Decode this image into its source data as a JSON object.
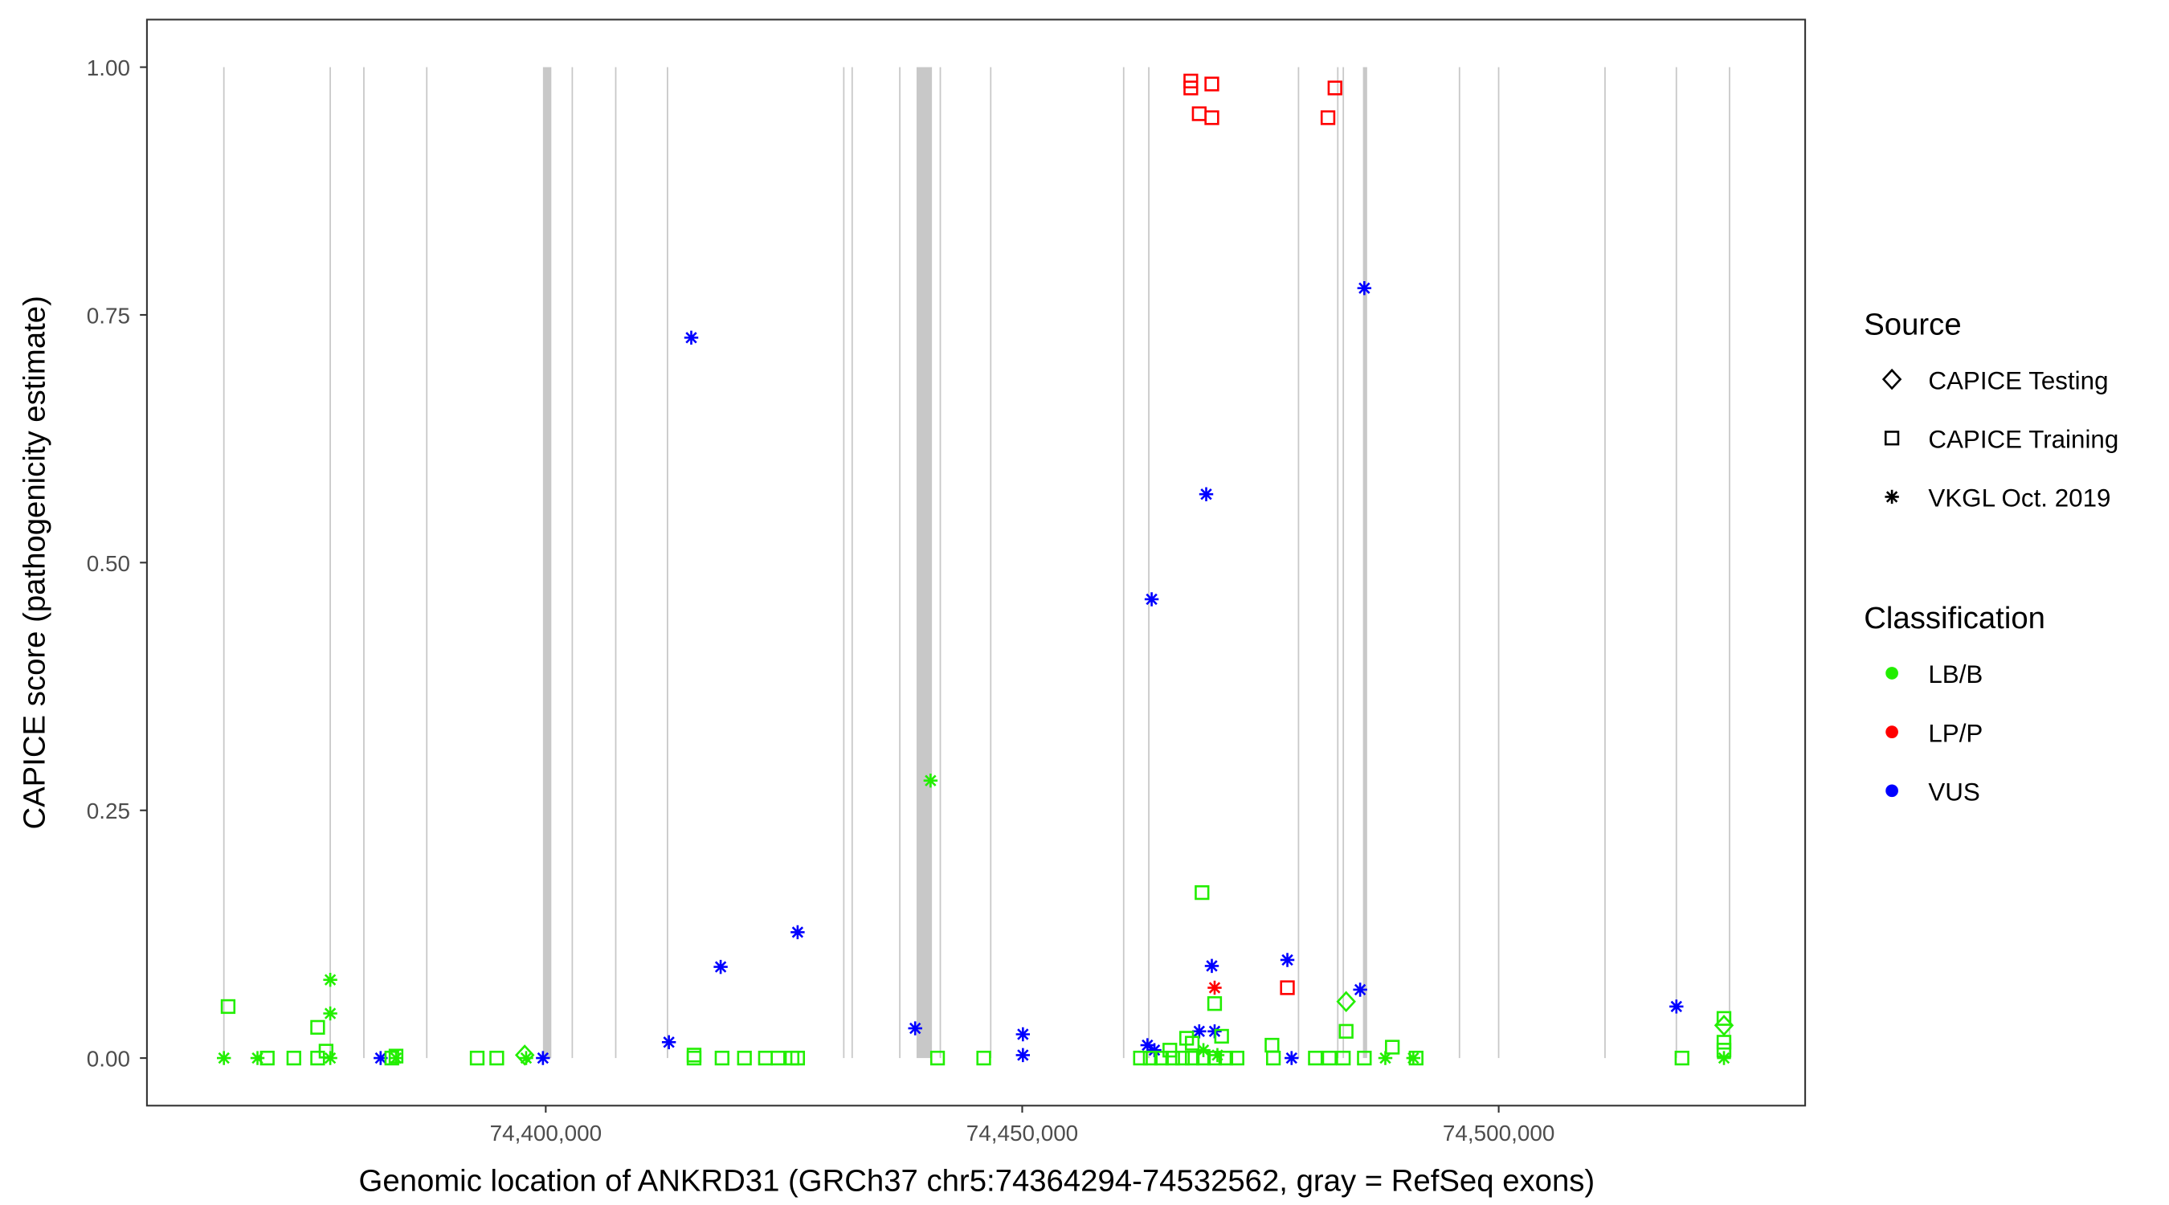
{
  "chart_data": {
    "type": "scatter",
    "xlabel": "Genomic location of ANKRD31 (GRCh37 chr5:74364294-74532562, gray = RefSeq exons)",
    "ylabel": "CAPICE score (pathogenicity estimate)",
    "xlim": [
      74358150,
      74532160
    ],
    "ylim": [
      -0.048,
      1.048
    ],
    "x_ticks": [
      74400000,
      74450000,
      74500000
    ],
    "x_tick_labels": [
      "74,400,000",
      "74,450,000",
      "74,500,000"
    ],
    "y_ticks": [
      0,
      0.25,
      0.5,
      0.75,
      1.0
    ],
    "y_tick_labels": [
      "0.00",
      "0.25",
      "0.50",
      "0.75",
      "1.00"
    ],
    "grid": false,
    "legend_placement": "right",
    "legend": {
      "source_title": "Source",
      "source_items": [
        {
          "label": "CAPICE Testing",
          "shape": "diamond"
        },
        {
          "label": "CAPICE Training",
          "shape": "square"
        },
        {
          "label": "VKGL Oct. 2019",
          "shape": "asterisk"
        }
      ],
      "class_title": "Classification",
      "class_items": [
        {
          "label": "LB/B",
          "color": "#22ee00"
        },
        {
          "label": "LP/P",
          "color": "#ff0000"
        },
        {
          "label": "VUS",
          "color": "#0000ff"
        }
      ]
    },
    "exons": [
      [
        74366150,
        74366300
      ],
      [
        74377310,
        74377460
      ],
      [
        74380840,
        74380990
      ],
      [
        74387440,
        74387590
      ],
      [
        74399706,
        74400587
      ],
      [
        74402710,
        74402860
      ],
      [
        74407270,
        74407420
      ],
      [
        74412700,
        74412850
      ],
      [
        74431200,
        74431350
      ],
      [
        74432080,
        74432230
      ],
      [
        74437080,
        74437230
      ],
      [
        74438913,
        74440528
      ],
      [
        74441330,
        74441480
      ],
      [
        74446620,
        74446770
      ],
      [
        74460570,
        74460720
      ],
      [
        74463210,
        74463360
      ],
      [
        74478920,
        74479070
      ],
      [
        74483040,
        74483190
      ],
      [
        74483620,
        74483770
      ],
      [
        74485755,
        74486196
      ],
      [
        74495810,
        74495960
      ],
      [
        74499920,
        74500070
      ],
      [
        74511080,
        74511230
      ],
      [
        74518570,
        74518720
      ],
      [
        74524150,
        74524300
      ]
    ],
    "points": [
      [
        74467693,
        0.986,
        "CAPICE Training",
        "LP/P"
      ],
      [
        74467693,
        0.979,
        "CAPICE Training",
        "LP/P"
      ],
      [
        74469896,
        0.983,
        "CAPICE Training",
        "LP/P"
      ],
      [
        74468574,
        0.953,
        "CAPICE Training",
        "LP/P"
      ],
      [
        74469896,
        0.949,
        "CAPICE Training",
        "LP/P"
      ],
      [
        74482818,
        0.979,
        "CAPICE Training",
        "LP/P"
      ],
      [
        74482084,
        0.949,
        "CAPICE Training",
        "LP/P"
      ],
      [
        74477825,
        0.071,
        "CAPICE Training",
        "LP/P"
      ],
      [
        74470190,
        0.071,
        "VKGL Oct. 2019",
        "LP/P"
      ],
      [
        74415271,
        0.727,
        "VKGL Oct. 2019",
        "VUS"
      ],
      [
        74485901,
        0.777,
        "VKGL Oct. 2019",
        "VUS"
      ],
      [
        74469308,
        0.569,
        "VKGL Oct. 2019",
        "VUS"
      ],
      [
        74463582,
        0.463,
        "VKGL Oct. 2019",
        "VUS"
      ],
      [
        74426431,
        0.127,
        "VKGL Oct. 2019",
        "VUS"
      ],
      [
        74418355,
        0.092,
        "VKGL Oct. 2019",
        "VUS"
      ],
      [
        74469896,
        0.093,
        "VKGL Oct. 2019",
        "VUS"
      ],
      [
        74477825,
        0.099,
        "VKGL Oct. 2019",
        "VUS"
      ],
      [
        74485461,
        0.069,
        "VKGL Oct. 2019",
        "VUS"
      ],
      [
        74518647,
        0.052,
        "VKGL Oct. 2019",
        "VUS"
      ],
      [
        74412922,
        0.016,
        "VKGL Oct. 2019",
        "VUS"
      ],
      [
        74438766,
        0.03,
        "VKGL Oct. 2019",
        "VUS"
      ],
      [
        74450072,
        0.024,
        "VKGL Oct. 2019",
        "VUS"
      ],
      [
        74450072,
        0.003,
        "VKGL Oct. 2019",
        "VUS"
      ],
      [
        74463141,
        0.013,
        "VKGL Oct. 2019",
        "VUS"
      ],
      [
        74463875,
        0.008,
        "VKGL Oct. 2019",
        "VUS"
      ],
      [
        74468574,
        0.027,
        "VKGL Oct. 2019",
        "VUS"
      ],
      [
        74470190,
        0.027,
        "VKGL Oct. 2019",
        "VUS"
      ],
      [
        74382673,
        0.0,
        "VKGL Oct. 2019",
        "VUS"
      ],
      [
        74399706,
        0.0,
        "VKGL Oct. 2019",
        "VUS"
      ],
      [
        74478266,
        0.0,
        "VKGL Oct. 2019",
        "VUS"
      ],
      [
        74440381,
        0.28,
        "VKGL Oct. 2019",
        "LB/B"
      ],
      [
        74377387,
        0.079,
        "VKGL Oct. 2019",
        "LB/B"
      ],
      [
        74377387,
        0.045,
        "VKGL Oct. 2019",
        "LB/B"
      ],
      [
        74366227,
        0.0,
        "VKGL Oct. 2019",
        "LB/B"
      ],
      [
        74369751,
        0.0,
        "VKGL Oct. 2019",
        "LB/B"
      ],
      [
        74377387,
        0.0,
        "VKGL Oct. 2019",
        "LB/B"
      ],
      [
        74384288,
        0.0,
        "VKGL Oct. 2019",
        "LB/B"
      ],
      [
        74397944,
        0.0,
        "VKGL Oct. 2019",
        "LB/B"
      ],
      [
        74469015,
        0.008,
        "VKGL Oct. 2019",
        "LB/B"
      ],
      [
        74470483,
        0.003,
        "VKGL Oct. 2019",
        "LB/B"
      ],
      [
        74488104,
        0.0,
        "VKGL Oct. 2019",
        "LB/B"
      ],
      [
        74491041,
        0.0,
        "VKGL Oct. 2019",
        "LB/B"
      ],
      [
        74523639,
        0.0,
        "VKGL Oct. 2019",
        "LB/B"
      ],
      [
        74366667,
        0.052,
        "CAPICE Training",
        "LB/B"
      ],
      [
        74376065,
        0.031,
        "CAPICE Training",
        "LB/B"
      ],
      [
        74376946,
        0.007,
        "CAPICE Training",
        "LB/B"
      ],
      [
        74370779,
        0.0,
        "CAPICE Training",
        "LB/B"
      ],
      [
        74373569,
        0.0,
        "CAPICE Training",
        "LB/B"
      ],
      [
        74376065,
        0.0,
        "CAPICE Training",
        "LB/B"
      ],
      [
        74383848,
        0.0,
        "CAPICE Training",
        "LB/B"
      ],
      [
        74384288,
        0.002,
        "CAPICE Training",
        "LB/B"
      ],
      [
        74392805,
        0.0,
        "CAPICE Training",
        "LB/B"
      ],
      [
        74394861,
        0.0,
        "CAPICE Training",
        "LB/B"
      ],
      [
        74415565,
        0.0,
        "CAPICE Training",
        "LB/B"
      ],
      [
        74415565,
        0.003,
        "CAPICE Training",
        "LB/B"
      ],
      [
        74418502,
        0.0,
        "CAPICE Training",
        "LB/B"
      ],
      [
        74420851,
        0.0,
        "CAPICE Training",
        "LB/B"
      ],
      [
        74423054,
        0.0,
        "CAPICE Training",
        "LB/B"
      ],
      [
        74424375,
        0.0,
        "CAPICE Training",
        "LB/B"
      ],
      [
        74425844,
        0.0,
        "CAPICE Training",
        "LB/B"
      ],
      [
        74426431,
        0.0,
        "CAPICE Training",
        "LB/B"
      ],
      [
        74441115,
        0.0,
        "CAPICE Training",
        "LB/B"
      ],
      [
        74445961,
        0.0,
        "CAPICE Training",
        "LB/B"
      ],
      [
        74468868,
        0.167,
        "CAPICE Training",
        "LB/B"
      ],
      [
        74470190,
        0.055,
        "CAPICE Training",
        "LB/B"
      ],
      [
        74476210,
        0.013,
        "CAPICE Training",
        "LB/B"
      ],
      [
        74483992,
        0.027,
        "CAPICE Training",
        "LB/B"
      ],
      [
        74488838,
        0.011,
        "CAPICE Training",
        "LB/B"
      ],
      [
        74523639,
        0.04,
        "CAPICE Training",
        "LB/B"
      ],
      [
        74523639,
        0.016,
        "CAPICE Training",
        "LB/B"
      ],
      [
        74523639,
        0.008,
        "CAPICE Training",
        "LB/B"
      ],
      [
        74519234,
        0.0,
        "CAPICE Training",
        "LB/B"
      ],
      [
        74476357,
        0.0,
        "CAPICE Training",
        "LB/B"
      ],
      [
        74480762,
        0.0,
        "CAPICE Training",
        "LB/B"
      ],
      [
        74482230,
        0.0,
        "CAPICE Training",
        "LB/B"
      ],
      [
        74483699,
        0.0,
        "CAPICE Training",
        "LB/B"
      ],
      [
        74485901,
        0.0,
        "CAPICE Training",
        "LB/B"
      ],
      [
        74491334,
        0.0,
        "CAPICE Training",
        "LB/B"
      ],
      [
        74462407,
        0.0,
        "CAPICE Training",
        "LB/B"
      ],
      [
        74463435,
        0.0,
        "CAPICE Training",
        "LB/B"
      ],
      [
        74464610,
        0.0,
        "CAPICE Training",
        "LB/B"
      ],
      [
        74465785,
        0.0,
        "CAPICE Training",
        "LB/B"
      ],
      [
        74466812,
        0.0,
        "CAPICE Training",
        "LB/B"
      ],
      [
        74467840,
        0.0,
        "CAPICE Training",
        "LB/B"
      ],
      [
        74469015,
        0.0,
        "CAPICE Training",
        "LB/B"
      ],
      [
        74470190,
        0.0,
        "CAPICE Training",
        "LB/B"
      ],
      [
        74471364,
        0.0,
        "CAPICE Training",
        "LB/B"
      ],
      [
        74472539,
        0.0,
        "CAPICE Training",
        "LB/B"
      ],
      [
        74467253,
        0.02,
        "CAPICE Training",
        "LB/B"
      ],
      [
        74465491,
        0.008,
        "CAPICE Training",
        "LB/B"
      ],
      [
        74467840,
        0.015,
        "CAPICE Training",
        "LB/B"
      ],
      [
        74470924,
        0.022,
        "CAPICE Training",
        "LB/B"
      ],
      [
        74483992,
        0.057,
        "CAPICE Testing",
        "LB/B"
      ],
      [
        74523639,
        0.033,
        "CAPICE Testing",
        "LB/B"
      ],
      [
        74397797,
        0.003,
        "CAPICE Testing",
        "LB/B"
      ]
    ]
  }
}
